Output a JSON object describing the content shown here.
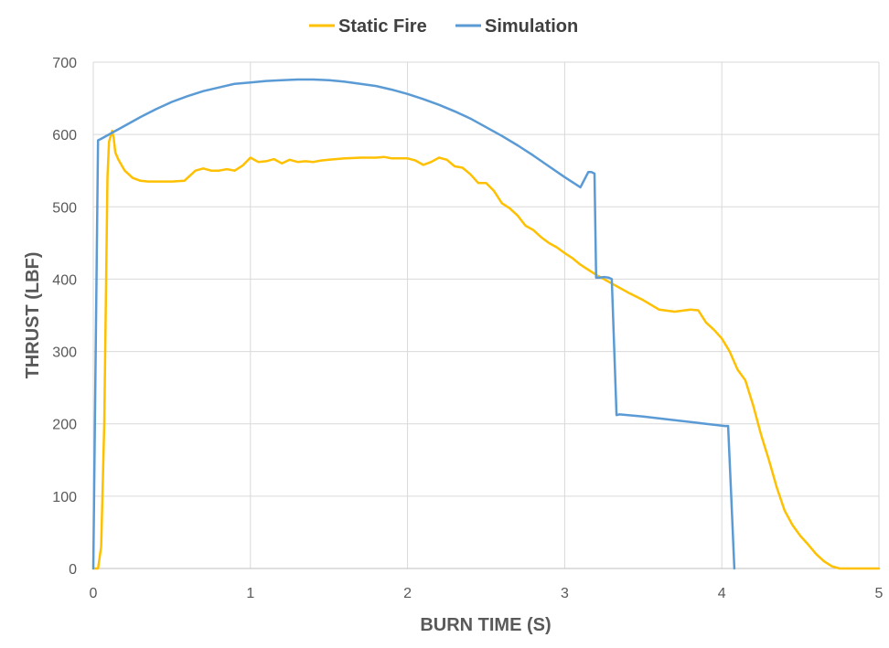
{
  "chart_data": {
    "type": "line",
    "title": "",
    "xlabel": "BURN TIME (S)",
    "ylabel": "THRUST (LBF)",
    "xlim": [
      0,
      5
    ],
    "ylim": [
      0,
      700
    ],
    "x_ticks": [
      "0",
      "1",
      "2",
      "3",
      "4",
      "5"
    ],
    "y_ticks": [
      "0",
      "100",
      "200",
      "300",
      "400",
      "500",
      "600",
      "700"
    ],
    "grid": true,
    "legend_position": "top",
    "series": [
      {
        "name": "Static Fire",
        "color": "#FFC000",
        "x": [
          0.0,
          0.03,
          0.05,
          0.07,
          0.09,
          0.1,
          0.12,
          0.13,
          0.14,
          0.16,
          0.2,
          0.25,
          0.3,
          0.35,
          0.4,
          0.5,
          0.58,
          0.6,
          0.65,
          0.7,
          0.75,
          0.8,
          0.85,
          0.9,
          0.95,
          1.0,
          1.05,
          1.1,
          1.15,
          1.2,
          1.25,
          1.3,
          1.35,
          1.4,
          1.45,
          1.5,
          1.6,
          1.7,
          1.8,
          1.85,
          1.9,
          1.95,
          2.0,
          2.05,
          2.1,
          2.15,
          2.2,
          2.25,
          2.3,
          2.35,
          2.4,
          2.45,
          2.5,
          2.55,
          2.6,
          2.65,
          2.7,
          2.75,
          2.8,
          2.85,
          2.9,
          2.95,
          3.0,
          3.05,
          3.1,
          3.2,
          3.3,
          3.4,
          3.5,
          3.6,
          3.7,
          3.8,
          3.85,
          3.9,
          3.95,
          4.0,
          4.05,
          4.1,
          4.15,
          4.2,
          4.25,
          4.3,
          4.35,
          4.4,
          4.45,
          4.5,
          4.55,
          4.6,
          4.65,
          4.7,
          4.75,
          4.78,
          4.8,
          4.85,
          4.9,
          4.95,
          5.0
        ],
        "y": [
          0,
          0,
          30,
          200,
          540,
          590,
          605,
          595,
          575,
          565,
          550,
          540,
          536,
          535,
          535,
          535,
          536,
          540,
          550,
          553,
          550,
          550,
          552,
          550,
          557,
          568,
          562,
          563,
          566,
          560,
          565,
          562,
          563,
          562,
          564,
          565,
          567,
          568,
          568,
          569,
          567,
          567,
          567,
          564,
          558,
          562,
          568,
          565,
          556,
          554,
          545,
          533,
          533,
          522,
          505,
          498,
          488,
          474,
          468,
          458,
          450,
          444,
          436,
          429,
          420,
          406,
          394,
          382,
          371,
          358,
          355,
          358,
          357,
          340,
          330,
          318,
          300,
          275,
          260,
          225,
          185,
          150,
          112,
          80,
          60,
          45,
          33,
          20,
          10,
          3,
          0,
          0,
          0,
          0,
          0,
          0,
          0
        ]
      },
      {
        "name": "Simulation",
        "color": "#5B9BD5",
        "x": [
          0.0,
          0.03,
          0.05,
          0.1,
          0.2,
          0.3,
          0.4,
          0.5,
          0.6,
          0.7,
          0.8,
          0.9,
          1.0,
          1.1,
          1.2,
          1.3,
          1.4,
          1.5,
          1.6,
          1.7,
          1.8,
          1.9,
          2.0,
          2.1,
          2.2,
          2.3,
          2.4,
          2.5,
          2.6,
          2.7,
          2.8,
          2.9,
          3.0,
          3.1,
          3.15,
          3.17,
          3.19,
          3.2,
          3.22,
          3.25,
          3.28,
          3.3,
          3.33,
          3.35,
          3.5,
          3.7,
          3.9,
          4.02,
          4.04,
          4.06,
          4.08
        ],
        "y": [
          0,
          592,
          594,
          600,
          612,
          624,
          635,
          645,
          653,
          660,
          665,
          670,
          672,
          674,
          675,
          676,
          676,
          675,
          673,
          670,
          667,
          662,
          656,
          649,
          641,
          632,
          622,
          610,
          598,
          585,
          571,
          556,
          541,
          527,
          548,
          548,
          546,
          402,
          402,
          403,
          402,
          400,
          212,
          213,
          210,
          205,
          200,
          197,
          197,
          100,
          0
        ]
      }
    ]
  }
}
